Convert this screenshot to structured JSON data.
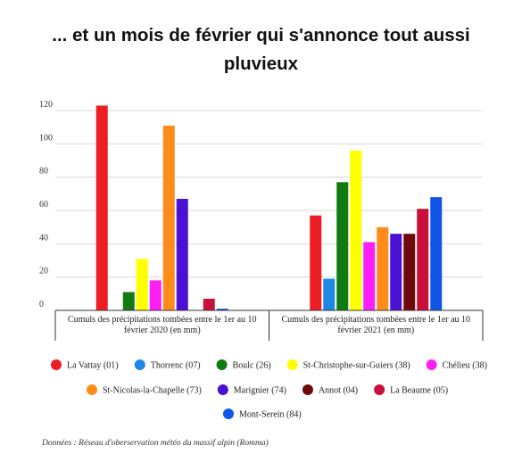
{
  "title": "... et un mois de février qui s'annonce tout aussi pluvieux",
  "source": "Données : Réseau d'oberservation météo du massif alpin (Romma)",
  "chart_data": {
    "type": "bar",
    "categories": [
      [
        "Cumuls des précipitations tombées entre le 1er au 10",
        "février 2020 (en mm)"
      ],
      [
        "Cumuls des précipitations tombées entre le 1er au 10",
        "février 2021 (en mm)"
      ]
    ],
    "ylim": [
      0,
      120
    ],
    "yticks": [
      0,
      20,
      40,
      60,
      80,
      100,
      120
    ],
    "grid": true,
    "legend_position": "bottom",
    "series": [
      {
        "name": "La Vattay (01)",
        "color": "#ee1d23",
        "values": [
          123,
          57
        ]
      },
      {
        "name": "Thorrenc (07)",
        "color": "#1e88e5",
        "values": [
          0,
          19
        ]
      },
      {
        "name": "Boulc (26)",
        "color": "#117a11",
        "values": [
          11,
          77
        ]
      },
      {
        "name": "St-Christophe-sur-Guiers (38)",
        "color": "#ffff00",
        "values": [
          31,
          96
        ]
      },
      {
        "name": "Chélieu (38)",
        "color": "#ff1ff6",
        "values": [
          18,
          41
        ]
      },
      {
        "name": "St-Nicolas-la-Chapelle (73)",
        "color": "#ff8c1a",
        "values": [
          111,
          50
        ]
      },
      {
        "name": "Marignier (74)",
        "color": "#4a11d4",
        "values": [
          67,
          46
        ]
      },
      {
        "name": "Annot (04)",
        "color": "#6e0a0a",
        "values": [
          0,
          46
        ]
      },
      {
        "name": "La Beaume (05)",
        "color": "#c8103a",
        "values": [
          7,
          61
        ]
      },
      {
        "name": "Mont-Serein (84)",
        "color": "#1055e8",
        "values": [
          1,
          68
        ]
      }
    ]
  }
}
